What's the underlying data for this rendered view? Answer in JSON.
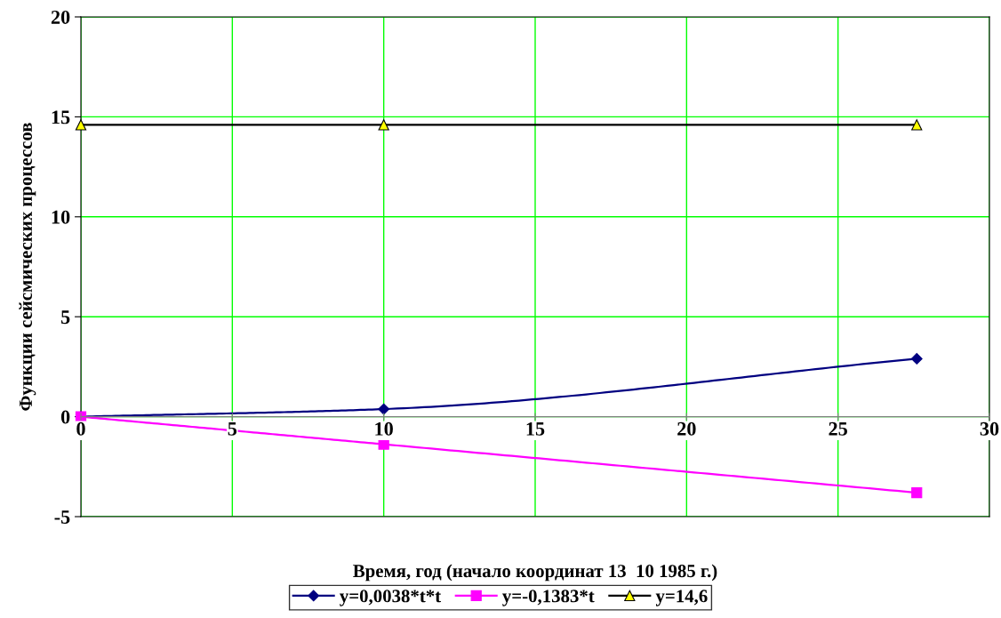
{
  "chart_data": {
    "type": "line",
    "xlabel": "Время, год (начало координат 13  10 1985 г.)",
    "ylabel": "Функции сейсмических процессов",
    "series": [
      {
        "name": "y=0,0038*t*t",
        "color": "#000080",
        "marker": "diamond",
        "x": [
          0,
          10,
          27.6
        ],
        "values": [
          0,
          0.38,
          2.9
        ]
      },
      {
        "name": "y=-0,1383*t",
        "color": "#ff00ff",
        "marker": "square",
        "x": [
          0,
          10,
          27.6
        ],
        "values": [
          0,
          -1.38,
          -3.8
        ]
      },
      {
        "name": "y=14,6",
        "color": "#000000",
        "marker": "triangle",
        "colors": [
          "#ffff00",
          "#ffff00",
          "#ffff00"
        ],
        "x": [
          0,
          10,
          27.6
        ],
        "values": [
          14.6,
          14.6,
          14.6
        ]
      }
    ],
    "xlim": [
      0,
      30
    ],
    "xticks": [
      0,
      5,
      10,
      15,
      20,
      25,
      30
    ],
    "ylim": [
      -5,
      20
    ],
    "yticks": [
      -5,
      0,
      5,
      10,
      15,
      20
    ],
    "grid": true,
    "legend": "bottom",
    "line_style": "solid"
  }
}
